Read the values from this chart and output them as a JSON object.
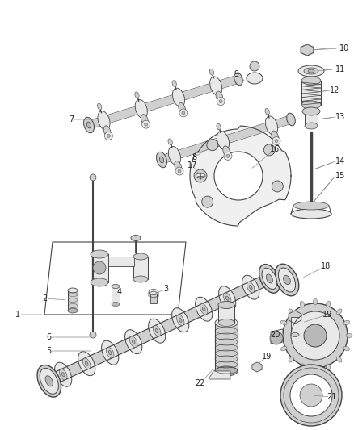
{
  "background_color": "#ffffff",
  "fig_width": 4.38,
  "fig_height": 5.33,
  "dpi": 100,
  "line_color": "#444444",
  "label_color": "#222222",
  "label_fontsize": 7.0,
  "shadow_color": "#aaaaaa",
  "fill_light": "#e8e8e8",
  "fill_mid": "#d0d0d0",
  "fill_dark": "#b8b8b8"
}
